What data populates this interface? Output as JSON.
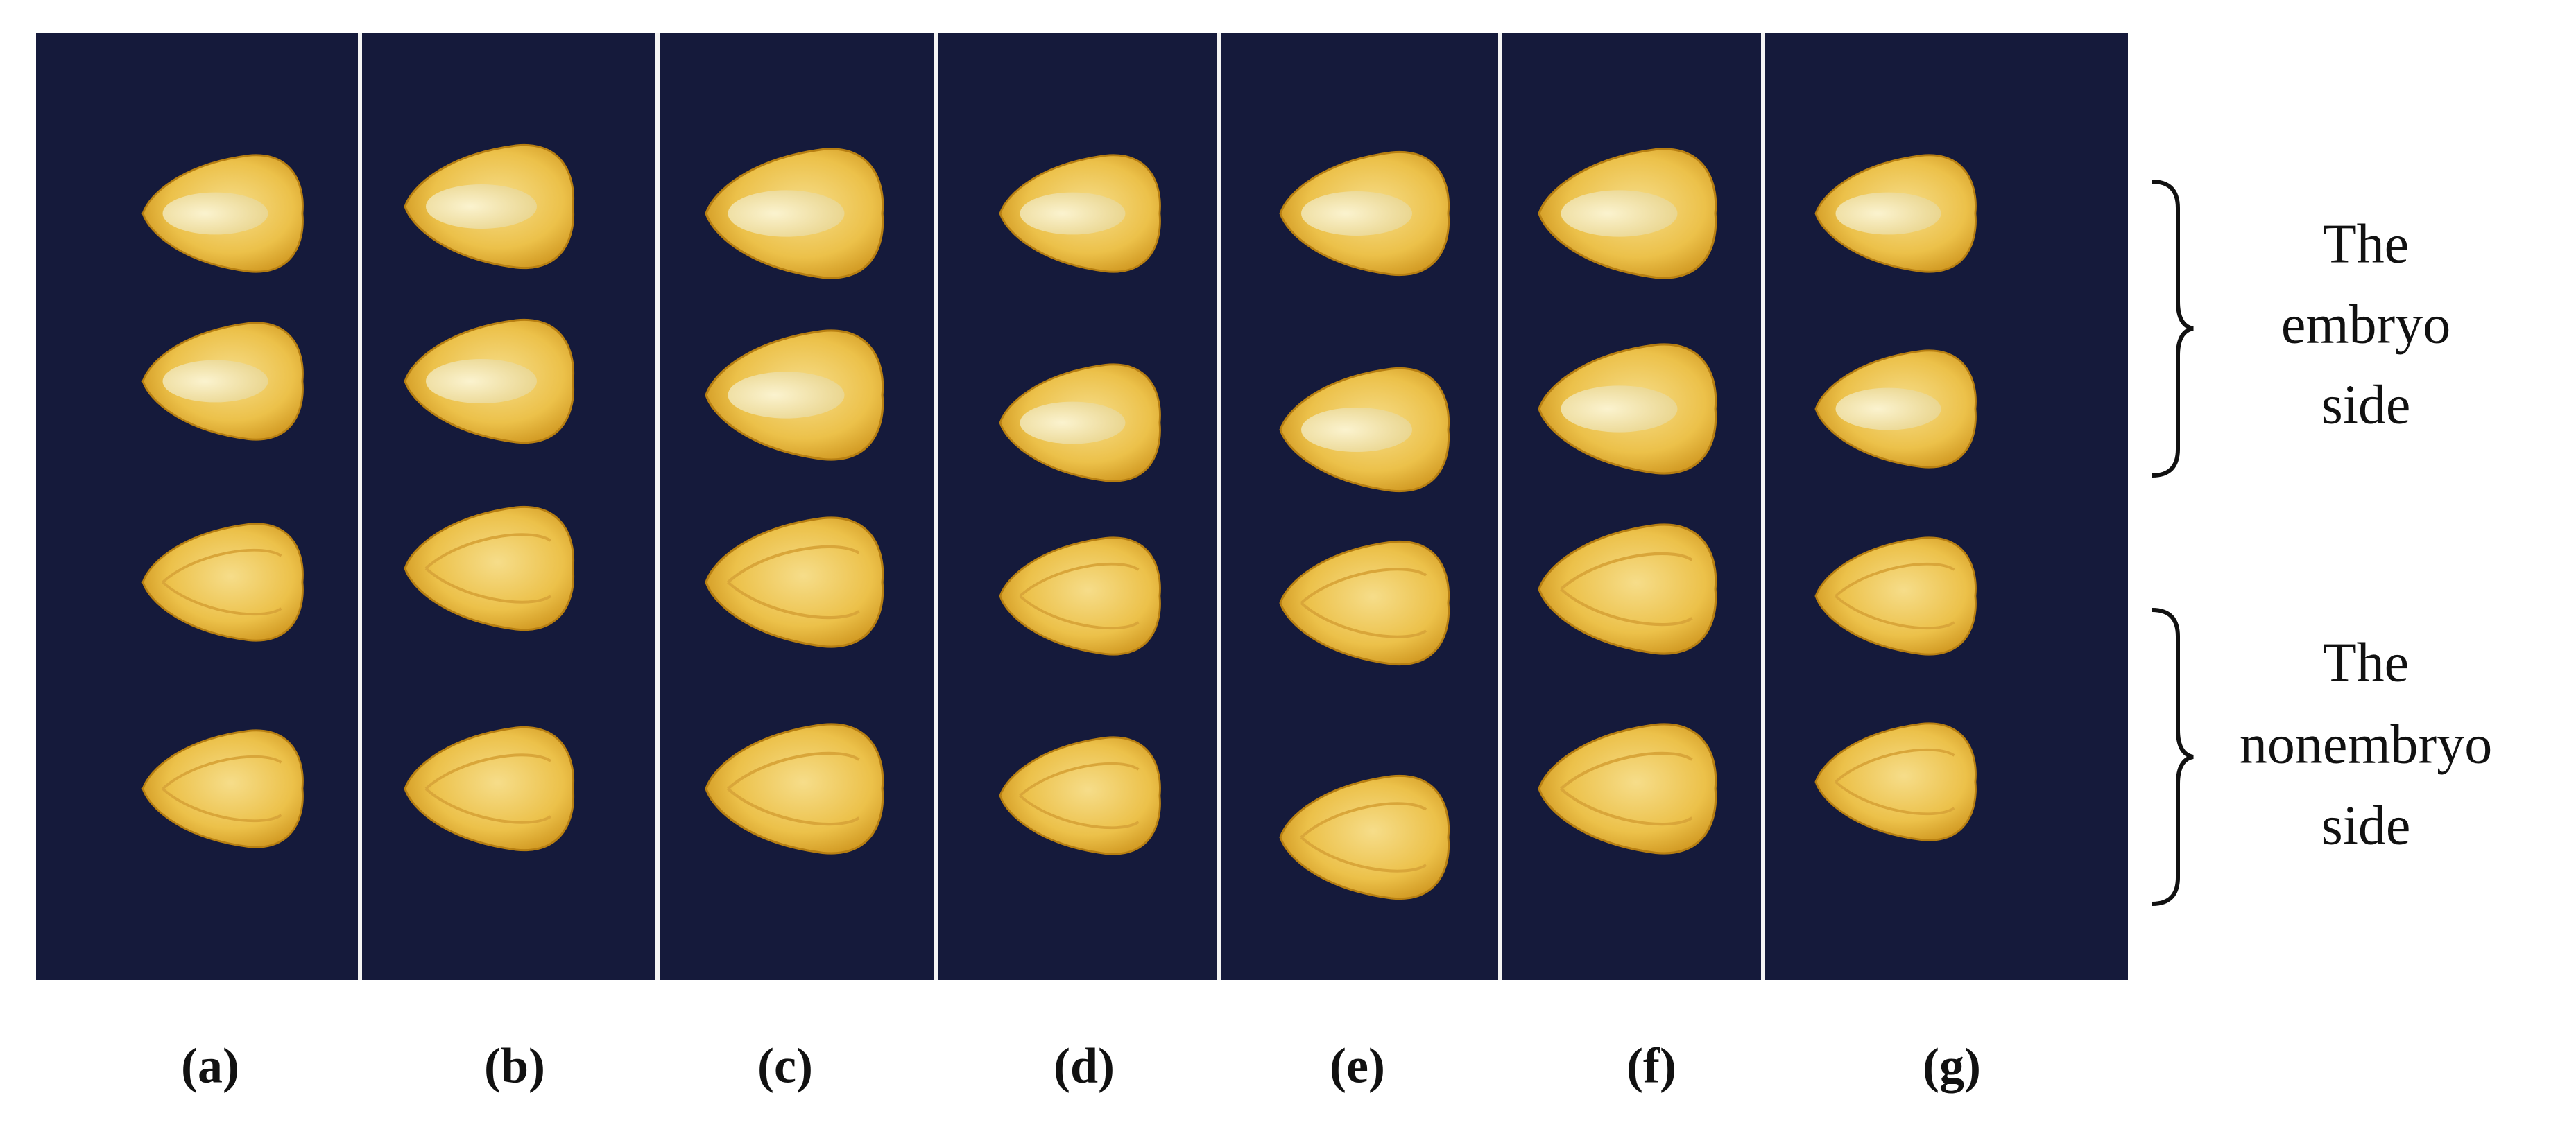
{
  "figure": {
    "panel_labels": [
      "(a)",
      "(b)",
      "(c)",
      "(d)",
      "(e)",
      "(f)",
      "(g)"
    ],
    "side_labels": [
      {
        "lines": [
          "The",
          "embryo",
          "side"
        ]
      },
      {
        "lines": [
          "The",
          "nonembryo",
          "side"
        ]
      }
    ]
  }
}
